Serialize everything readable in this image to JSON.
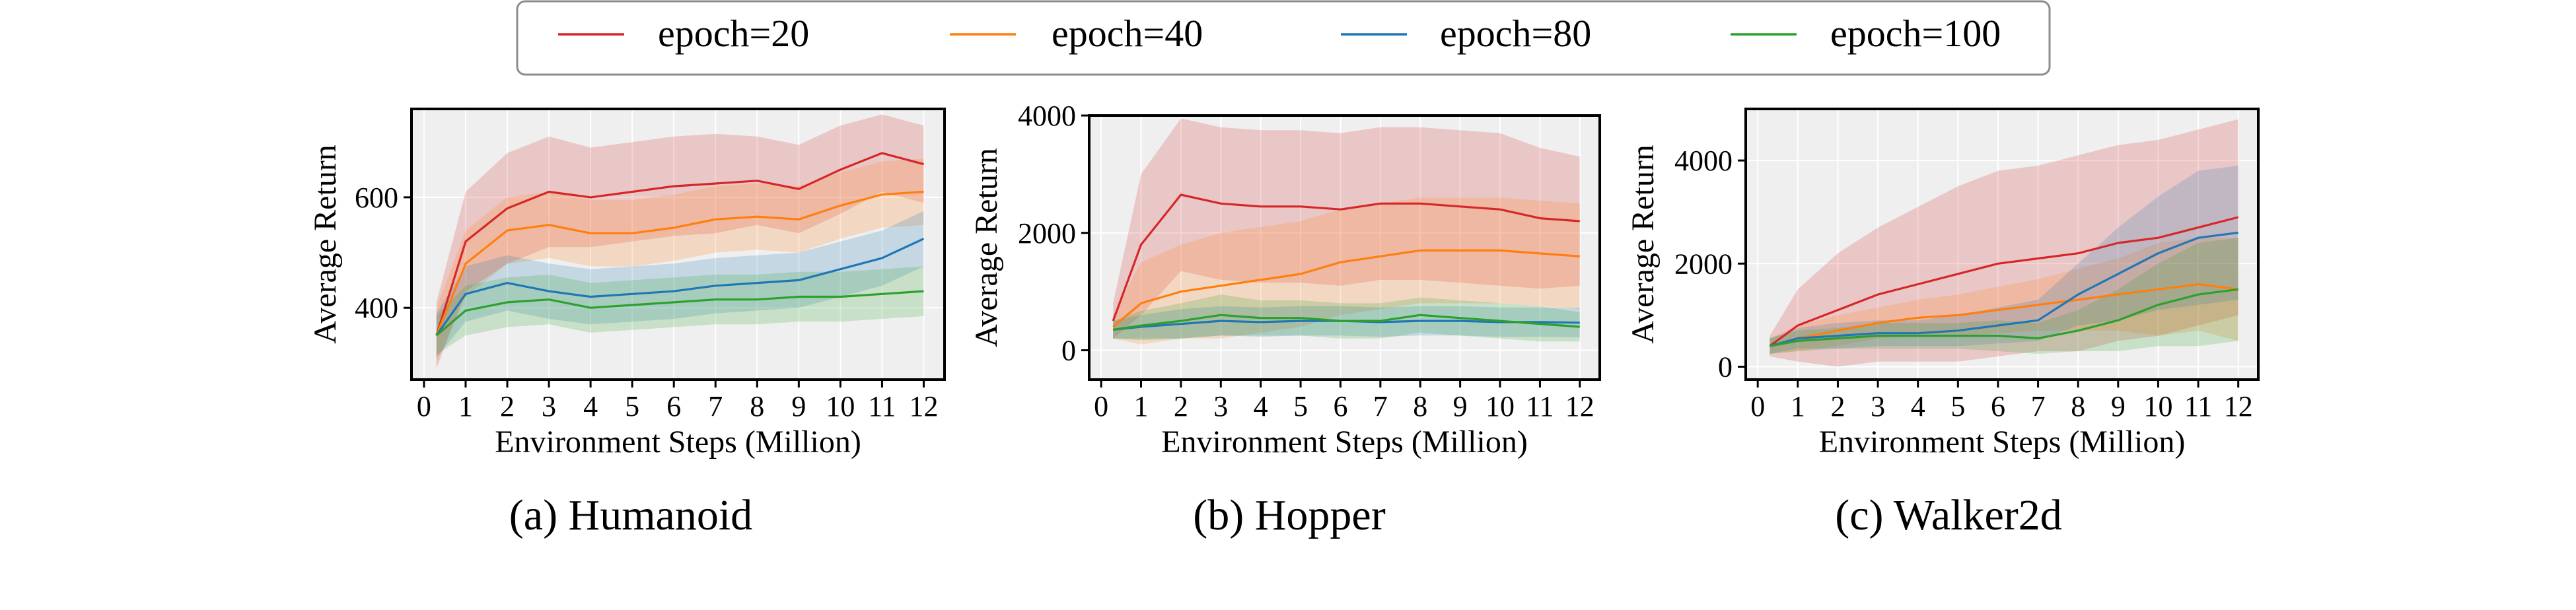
{
  "legend": {
    "location": "top-center",
    "entries": [
      {
        "label": "epoch=20",
        "color": "#d62728"
      },
      {
        "label": "epoch=40",
        "color": "#ff7f0e"
      },
      {
        "label": "epoch=80",
        "color": "#1f77b4"
      },
      {
        "label": "epoch=100",
        "color": "#2ca02c"
      }
    ]
  },
  "chart_data": [
    {
      "type": "line",
      "caption": "(a) Humanoid",
      "xlabel": "Environment Steps (Million)",
      "ylabel": "Average Return",
      "xlim": [
        -0.3,
        12.5
      ],
      "ylim": [
        270,
        760
      ],
      "xticks": [
        0,
        1,
        2,
        3,
        4,
        5,
        6,
        7,
        8,
        9,
        10,
        11,
        12
      ],
      "yticks": [
        400,
        600
      ],
      "grid": true,
      "x": [
        0.3,
        1,
        2,
        3,
        4,
        5,
        6,
        7,
        8,
        9,
        10,
        11,
        12
      ],
      "series": [
        {
          "name": "epoch=20",
          "values": [
            350,
            520,
            580,
            610,
            600,
            610,
            620,
            625,
            630,
            615,
            650,
            680,
            660
          ],
          "band": [
            60,
            90,
            100,
            100,
            90,
            90,
            90,
            90,
            80,
            80,
            80,
            70,
            70
          ]
        },
        {
          "name": "epoch=40",
          "values": [
            350,
            480,
            540,
            550,
            535,
            535,
            545,
            560,
            565,
            560,
            585,
            605,
            610
          ],
          "band": [
            50,
            60,
            60,
            60,
            60,
            60,
            60,
            60,
            60,
            60,
            60,
            60,
            60
          ]
        },
        {
          "name": "epoch=80",
          "values": [
            350,
            425,
            445,
            430,
            420,
            425,
            430,
            440,
            445,
            450,
            470,
            490,
            525
          ],
          "band": [
            40,
            50,
            50,
            50,
            50,
            50,
            50,
            50,
            50,
            50,
            50,
            50,
            50
          ]
        },
        {
          "name": "epoch=100",
          "values": [
            350,
            395,
            410,
            415,
            400,
            405,
            410,
            415,
            415,
            420,
            420,
            425,
            430
          ],
          "band": [
            35,
            45,
            45,
            45,
            45,
            45,
            45,
            45,
            45,
            45,
            45,
            45,
            45
          ]
        }
      ]
    },
    {
      "type": "line",
      "caption": "(b) Hopper",
      "xlabel": "Environment Steps (Million)",
      "ylabel": "Average Return",
      "xlim": [
        -0.3,
        12.5
      ],
      "ylim": [
        -500,
        4000
      ],
      "xticks": [
        0,
        1,
        2,
        3,
        4,
        5,
        6,
        7,
        8,
        9,
        10,
        11,
        12
      ],
      "yticks": [
        0,
        2000,
        4000
      ],
      "grid": true,
      "x": [
        0.3,
        1,
        2,
        3,
        4,
        5,
        6,
        7,
        8,
        9,
        10,
        11,
        12
      ],
      "series": [
        {
          "name": "epoch=20",
          "values": [
            500,
            1800,
            2650,
            2500,
            2450,
            2450,
            2400,
            2500,
            2500,
            2450,
            2400,
            2250,
            2200
          ],
          "band": [
            300,
            1200,
            1300,
            1300,
            1300,
            1300,
            1300,
            1300,
            1300,
            1300,
            1300,
            1200,
            1100
          ]
        },
        {
          "name": "epoch=40",
          "values": [
            400,
            800,
            1000,
            1100,
            1200,
            1300,
            1500,
            1600,
            1700,
            1700,
            1700,
            1650,
            1600
          ],
          "band": [
            200,
            700,
            800,
            900,
            900,
            900,
            900,
            900,
            900,
            900,
            900,
            900,
            900
          ]
        },
        {
          "name": "epoch=80",
          "values": [
            350,
            400,
            450,
            500,
            480,
            500,
            500,
            480,
            500,
            500,
            480,
            480,
            470
          ],
          "band": [
            150,
            200,
            250,
            250,
            250,
            250,
            250,
            250,
            250,
            250,
            250,
            250,
            250
          ]
        },
        {
          "name": "epoch=100",
          "values": [
            350,
            420,
            500,
            600,
            550,
            550,
            500,
            500,
            600,
            550,
            500,
            450,
            400
          ],
          "band": [
            150,
            250,
            300,
            350,
            300,
            300,
            300,
            300,
            300,
            300,
            300,
            300,
            250
          ]
        }
      ]
    },
    {
      "type": "line",
      "caption": "(c) Walker2d",
      "xlabel": "Environment Steps (Million)",
      "ylabel": "Average Return",
      "xlim": [
        -0.3,
        12.5
      ],
      "ylim": [
        -250,
        5000
      ],
      "xticks": [
        0,
        1,
        2,
        3,
        4,
        5,
        6,
        7,
        8,
        9,
        10,
        11,
        12
      ],
      "yticks": [
        0,
        2000,
        4000
      ],
      "grid": true,
      "x": [
        0.3,
        1,
        2,
        3,
        4,
        5,
        6,
        7,
        8,
        9,
        10,
        11,
        12
      ],
      "series": [
        {
          "name": "epoch=20",
          "values": [
            400,
            800,
            1100,
            1400,
            1600,
            1800,
            2000,
            2100,
            2200,
            2400,
            2500,
            2700,
            2900
          ],
          "band": [
            200,
            700,
            1100,
            1300,
            1500,
            1700,
            1800,
            1800,
            1900,
            1900,
            1900,
            1900,
            1900
          ]
        },
        {
          "name": "epoch=40",
          "values": [
            400,
            550,
            700,
            850,
            950,
            1000,
            1100,
            1200,
            1300,
            1400,
            1500,
            1600,
            1500
          ],
          "band": [
            150,
            250,
            300,
            300,
            350,
            400,
            450,
            500,
            600,
            700,
            900,
            900,
            1000
          ]
        },
        {
          "name": "epoch=80",
          "values": [
            400,
            550,
            600,
            650,
            650,
            700,
            800,
            900,
            1400,
            1800,
            2200,
            2500,
            2600
          ],
          "band": [
            150,
            200,
            250,
            250,
            250,
            300,
            350,
            400,
            600,
            900,
            1100,
            1300,
            1300
          ]
        },
        {
          "name": "epoch=100",
          "values": [
            400,
            500,
            550,
            600,
            600,
            600,
            600,
            550,
            700,
            900,
            1200,
            1400,
            1500
          ],
          "band": [
            150,
            200,
            200,
            250,
            250,
            250,
            300,
            300,
            400,
            600,
            800,
            1000,
            1000
          ]
        }
      ]
    }
  ]
}
